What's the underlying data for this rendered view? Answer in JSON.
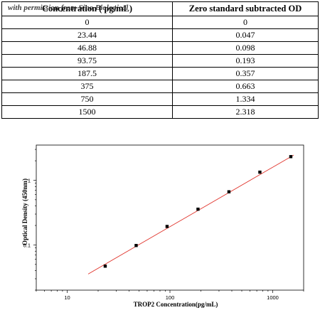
{
  "table": {
    "headers": [
      "Concentration ( pg/mL)",
      "Zero standard subtracted OD"
    ],
    "rows": [
      [
        "0",
        "0"
      ],
      [
        "23.44",
        "0.047"
      ],
      [
        "46.88",
        "0.098"
      ],
      [
        "93.75",
        "0.193"
      ],
      [
        "187.5",
        "0.357"
      ],
      [
        "375",
        "0.663"
      ],
      [
        "750",
        "1.334"
      ],
      [
        "1500",
        "2.318"
      ]
    ],
    "watermark": "with permission from Sino Biological"
  },
  "chart_data": {
    "type": "scatter",
    "xlabel": "TROP2  Concentration(pg/mL)",
    "ylabel": "Optical Density (450nm)",
    "x_scale": "log",
    "y_scale": "log",
    "xlim": [
      5,
      2000
    ],
    "ylim": [
      0.02,
      3.5
    ],
    "x_ticks": [
      10,
      100,
      1000
    ],
    "x_tick_labels": [
      "10",
      "100",
      "1000"
    ],
    "y_ticks": [
      0.1,
      1
    ],
    "y_tick_labels": [
      "0.1",
      "1"
    ],
    "grid": false,
    "series": [
      {
        "x": [
          23.44,
          46.88,
          93.75,
          187.5,
          375,
          750,
          1500
        ],
        "y": [
          0.047,
          0.098,
          0.193,
          0.357,
          0.663,
          1.334,
          2.318
        ],
        "marker": "square",
        "color": "#000000"
      }
    ],
    "fit_line": {
      "x": [
        16,
        1600
      ],
      "y": [
        0.0355,
        2.45
      ],
      "color": "#e0322a"
    }
  }
}
